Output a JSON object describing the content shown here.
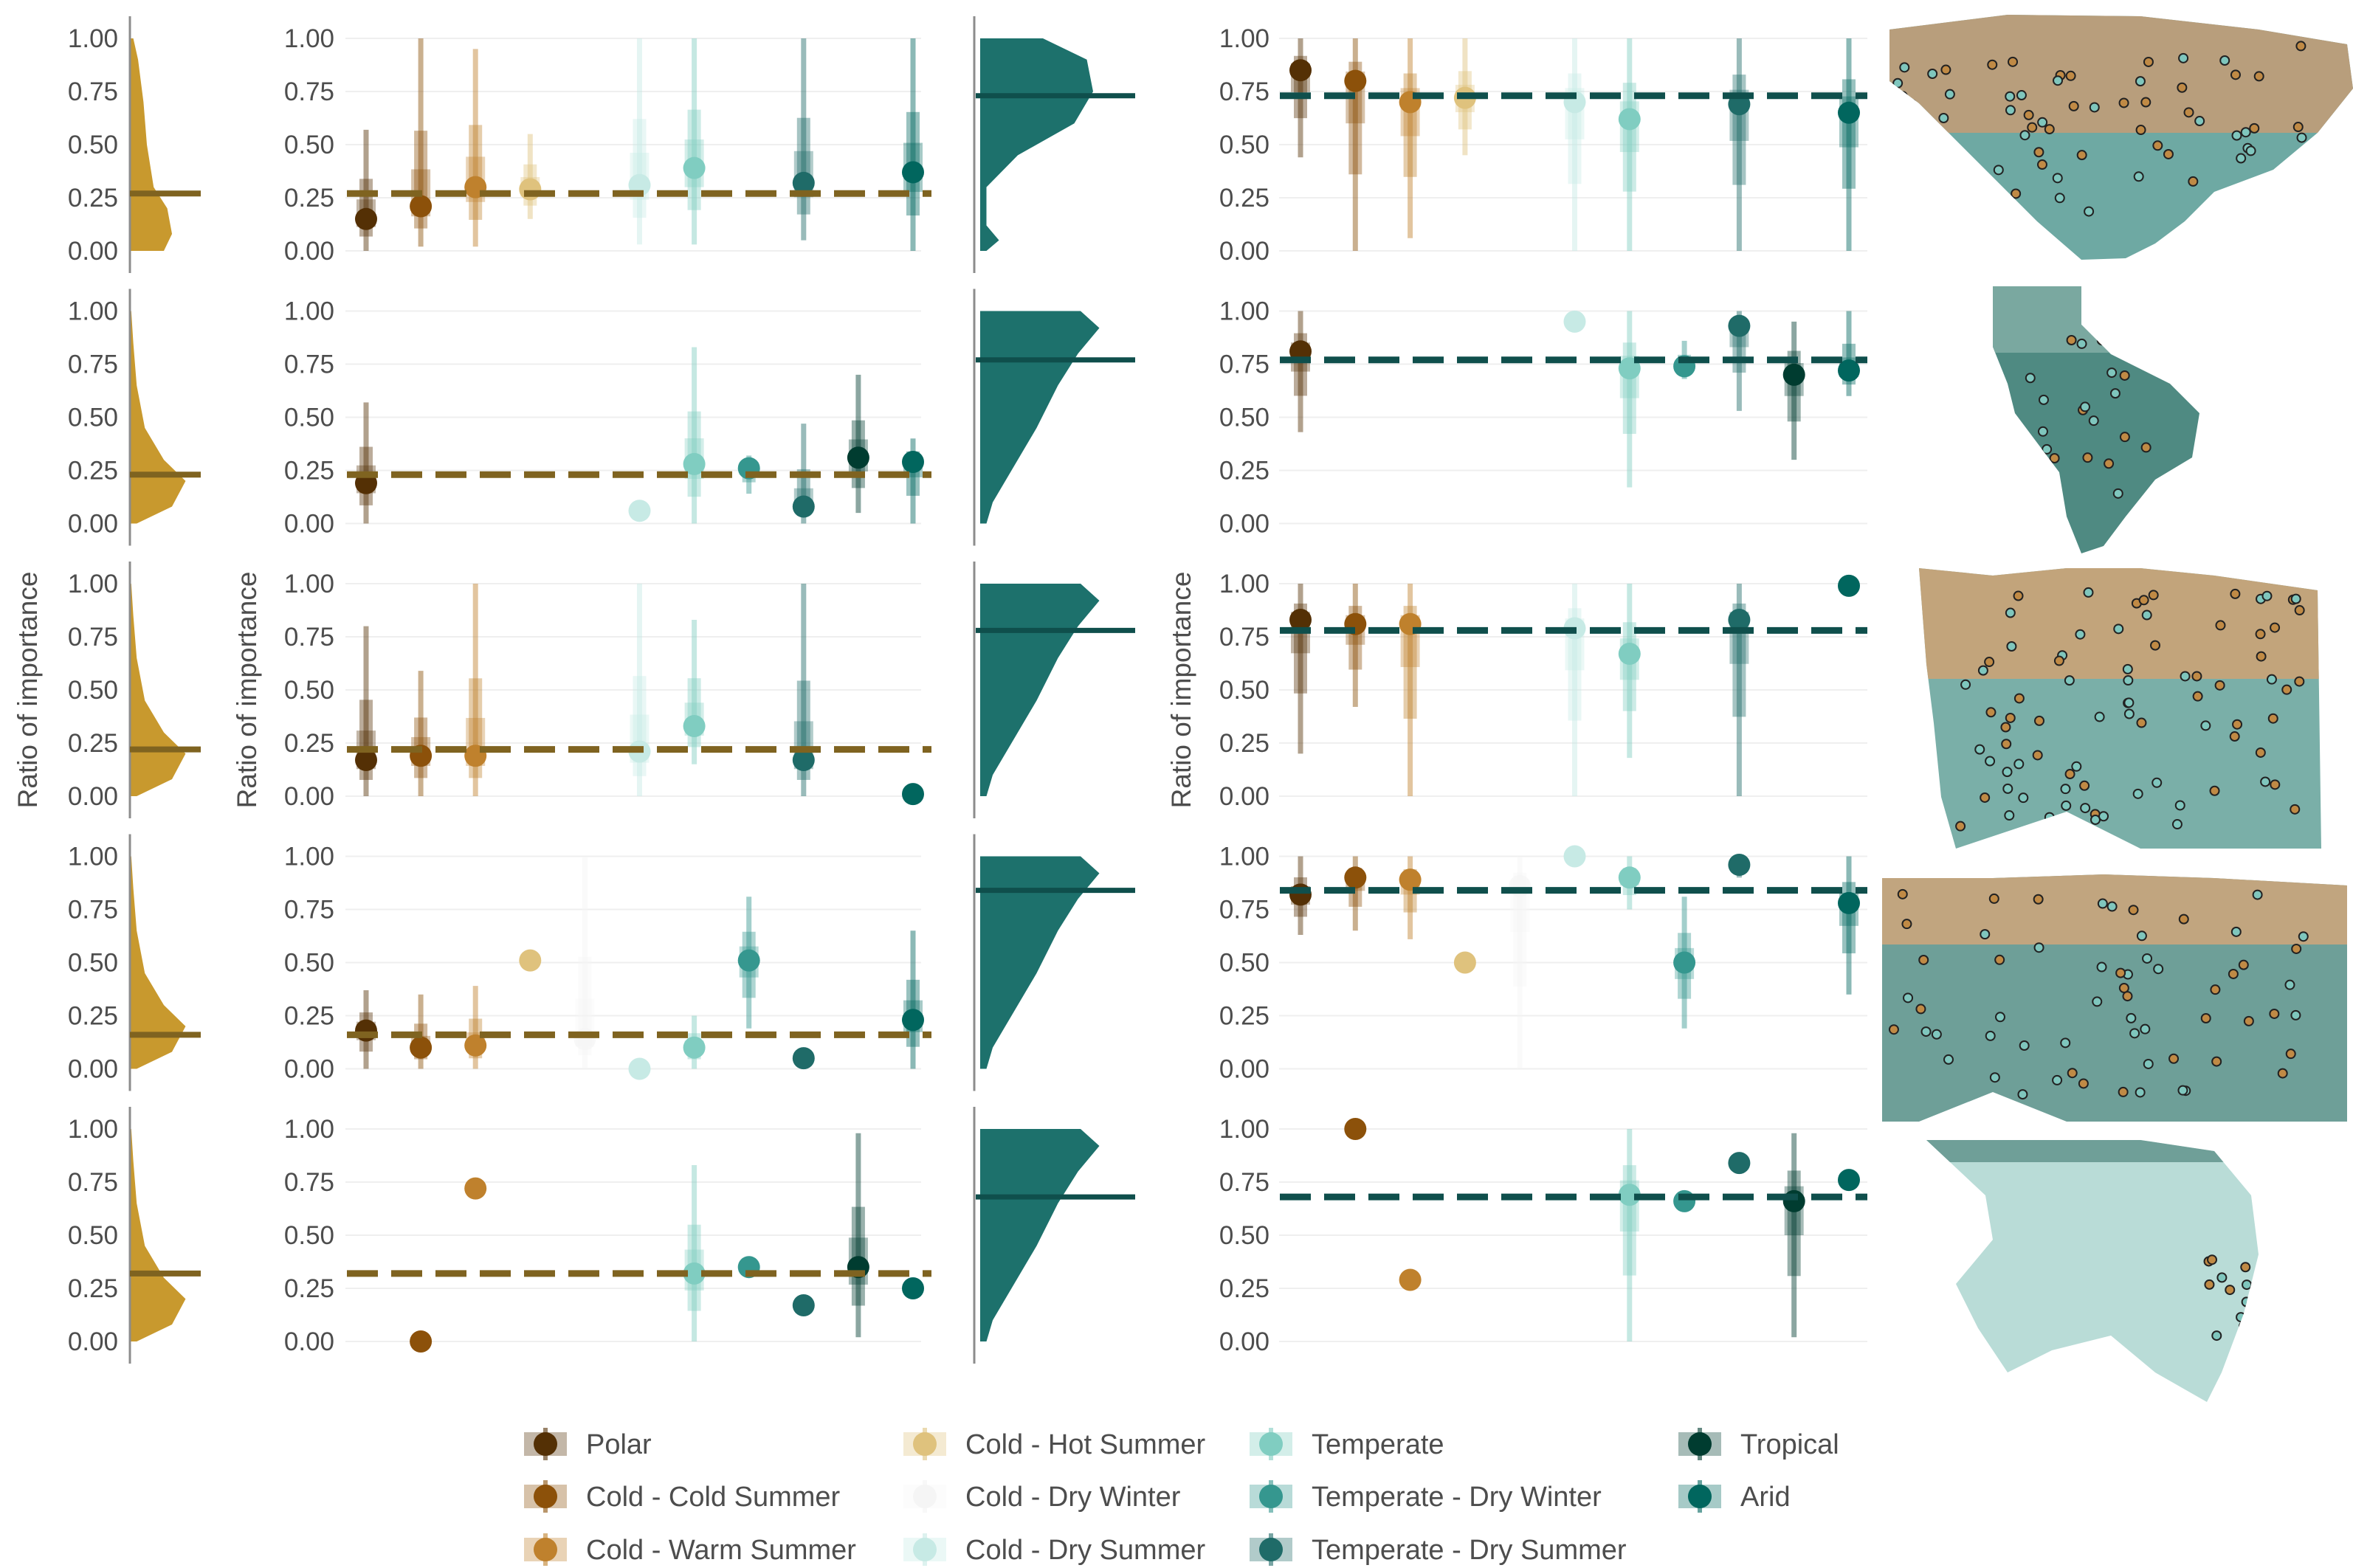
{
  "y_axis_label": "Ratio of importance",
  "legend": {
    "items": [
      {
        "label": "Polar",
        "color": "#543005"
      },
      {
        "label": "Cold - Cold Summer",
        "color": "#8c510a"
      },
      {
        "label": "Cold - Warm Summer",
        "color": "#bf812d"
      },
      {
        "label": "Cold - Hot Summer",
        "color": "#dfc27d"
      },
      {
        "label": "Cold - Dry Winter",
        "color": "#f5f5f5"
      },
      {
        "label": "Cold - Dry Summer",
        "color": "#c7eae5"
      },
      {
        "label": "Temperate",
        "color": "#80cdc1"
      },
      {
        "label": "Temperate - Dry Winter",
        "color": "#35978f"
      },
      {
        "label": "Temperate - Dry Summer",
        "color": "#1f6b68"
      },
      {
        "label": "Tropical",
        "color": "#003c30"
      },
      {
        "label": "Arid",
        "color": "#01665e"
      }
    ]
  },
  "colors": {
    "gold_density": "#c8992e",
    "gold_line": "#7f6320",
    "teal_density": "#1d716c",
    "teal_line": "#0f4f4c"
  },
  "maps": [
    {
      "region": "north-america"
    },
    {
      "region": "south-america"
    },
    {
      "region": "europe"
    },
    {
      "region": "asia"
    },
    {
      "region": "oceania"
    }
  ],
  "chart_data": {
    "type": "scatter",
    "y_ticks": [
      "1.00",
      "0.75",
      "0.50",
      "0.25",
      "0.00"
    ],
    "ylim": [
      0,
      1
    ],
    "categories": [
      "Polar",
      "Cold - Cold Summer",
      "Cold - Warm Summer",
      "Cold - Hot Summer",
      "Cold - Dry Winter",
      "Cold - Dry Summer",
      "Temperate",
      "Temperate - Dry Winter",
      "Temperate - Dry Summer",
      "Tropical",
      "Arid"
    ],
    "rows": [
      {
        "left_mean": 0.27,
        "right_mean": 0.73,
        "left_points": [
          {
            "c": 0,
            "y": 0.15,
            "lo": 0.0,
            "hi": 0.57
          },
          {
            "c": 1,
            "y": 0.21,
            "lo": 0.02,
            "hi": 1.0
          },
          {
            "c": 2,
            "y": 0.3,
            "lo": 0.02,
            "hi": 0.95
          },
          {
            "c": 3,
            "y": 0.29,
            "lo": 0.15,
            "hi": 0.55
          },
          {
            "c": 5,
            "y": 0.31,
            "lo": 0.03,
            "hi": 1.0
          },
          {
            "c": 6,
            "y": 0.39,
            "lo": 0.03,
            "hi": 1.0
          },
          {
            "c": 8,
            "y": 0.32,
            "lo": 0.05,
            "hi": 1.0
          },
          {
            "c": 10,
            "y": 0.37,
            "lo": 0.0,
            "hi": 1.0
          }
        ],
        "right_points": [
          {
            "c": 0,
            "y": 0.85,
            "lo": 0.44,
            "hi": 1.0
          },
          {
            "c": 1,
            "y": 0.8,
            "lo": 0.0,
            "hi": 1.0
          },
          {
            "c": 2,
            "y": 0.7,
            "lo": 0.06,
            "hi": 1.0
          },
          {
            "c": 3,
            "y": 0.72,
            "lo": 0.45,
            "hi": 1.0
          },
          {
            "c": 5,
            "y": 0.7,
            "lo": 0.0,
            "hi": 1.0
          },
          {
            "c": 6,
            "y": 0.62,
            "lo": 0.0,
            "hi": 1.0
          },
          {
            "c": 8,
            "y": 0.69,
            "lo": 0.0,
            "hi": 1.0
          },
          {
            "c": 10,
            "y": 0.65,
            "lo": 0.0,
            "hi": 1.0
          }
        ]
      },
      {
        "left_mean": 0.23,
        "right_mean": 0.77,
        "left_points": [
          {
            "c": 0,
            "y": 0.19,
            "lo": 0.0,
            "hi": 0.57
          },
          {
            "c": 5,
            "y": 0.06,
            "lo": 0.06,
            "hi": 0.06
          },
          {
            "c": 6,
            "y": 0.28,
            "lo": 0.0,
            "hi": 0.83
          },
          {
            "c": 7,
            "y": 0.26,
            "lo": 0.14,
            "hi": 0.32
          },
          {
            "c": 8,
            "y": 0.08,
            "lo": 0.0,
            "hi": 0.47
          },
          {
            "c": 9,
            "y": 0.31,
            "lo": 0.05,
            "hi": 0.7
          },
          {
            "c": 10,
            "y": 0.29,
            "lo": 0.0,
            "hi": 0.4
          }
        ],
        "right_points": [
          {
            "c": 0,
            "y": 0.81,
            "lo": 0.43,
            "hi": 1.0
          },
          {
            "c": 5,
            "y": 0.95,
            "lo": 0.95,
            "hi": 0.95
          },
          {
            "c": 6,
            "y": 0.73,
            "lo": 0.17,
            "hi": 1.0
          },
          {
            "c": 7,
            "y": 0.74,
            "lo": 0.68,
            "hi": 0.86
          },
          {
            "c": 8,
            "y": 0.93,
            "lo": 0.53,
            "hi": 1.0
          },
          {
            "c": 9,
            "y": 0.7,
            "lo": 0.3,
            "hi": 0.95
          },
          {
            "c": 10,
            "y": 0.72,
            "lo": 0.6,
            "hi": 1.0
          }
        ]
      },
      {
        "left_mean": 0.22,
        "right_mean": 0.78,
        "left_points": [
          {
            "c": 0,
            "y": 0.17,
            "lo": 0.0,
            "hi": 0.8
          },
          {
            "c": 1,
            "y": 0.19,
            "lo": 0.0,
            "hi": 0.59
          },
          {
            "c": 2,
            "y": 0.19,
            "lo": 0.0,
            "hi": 1.0
          },
          {
            "c": 5,
            "y": 0.21,
            "lo": 0.0,
            "hi": 1.0
          },
          {
            "c": 6,
            "y": 0.33,
            "lo": 0.15,
            "hi": 0.83
          },
          {
            "c": 8,
            "y": 0.17,
            "lo": 0.0,
            "hi": 1.0
          },
          {
            "c": 10,
            "y": 0.01,
            "lo": 0.01,
            "hi": 0.01
          }
        ],
        "right_points": [
          {
            "c": 0,
            "y": 0.83,
            "lo": 0.2,
            "hi": 1.0
          },
          {
            "c": 1,
            "y": 0.81,
            "lo": 0.42,
            "hi": 1.0
          },
          {
            "c": 2,
            "y": 0.81,
            "lo": 0.0,
            "hi": 1.0
          },
          {
            "c": 5,
            "y": 0.79,
            "lo": 0.0,
            "hi": 1.0
          },
          {
            "c": 6,
            "y": 0.67,
            "lo": 0.18,
            "hi": 1.0
          },
          {
            "c": 8,
            "y": 0.83,
            "lo": 0.0,
            "hi": 1.0
          },
          {
            "c": 10,
            "y": 0.99,
            "lo": 0.99,
            "hi": 0.99
          }
        ]
      },
      {
        "left_mean": 0.16,
        "right_mean": 0.84,
        "left_points": [
          {
            "c": 0,
            "y": 0.18,
            "lo": 0.0,
            "hi": 0.37
          },
          {
            "c": 1,
            "y": 0.1,
            "lo": 0.0,
            "hi": 0.35
          },
          {
            "c": 2,
            "y": 0.11,
            "lo": 0.0,
            "hi": 0.39
          },
          {
            "c": 3,
            "y": 0.51,
            "lo": 0.51,
            "hi": 0.51
          },
          {
            "c": 4,
            "y": 0.14,
            "lo": 0.0,
            "hi": 1.0
          },
          {
            "c": 5,
            "y": 0.0,
            "lo": 0.0,
            "hi": 0.0
          },
          {
            "c": 6,
            "y": 0.1,
            "lo": 0.0,
            "hi": 0.25
          },
          {
            "c": 7,
            "y": 0.51,
            "lo": 0.19,
            "hi": 0.81
          },
          {
            "c": 8,
            "y": 0.05,
            "lo": 0.0,
            "hi": 0.1
          },
          {
            "c": 10,
            "y": 0.23,
            "lo": 0.0,
            "hi": 0.65
          }
        ],
        "right_points": [
          {
            "c": 0,
            "y": 0.82,
            "lo": 0.63,
            "hi": 1.0
          },
          {
            "c": 1,
            "y": 0.9,
            "lo": 0.65,
            "hi": 1.0
          },
          {
            "c": 2,
            "y": 0.89,
            "lo": 0.61,
            "hi": 1.0
          },
          {
            "c": 3,
            "y": 0.5,
            "lo": 0.5,
            "hi": 0.5
          },
          {
            "c": 4,
            "y": 0.86,
            "lo": 0.0,
            "hi": 1.0
          },
          {
            "c": 5,
            "y": 1.0,
            "lo": 1.0,
            "hi": 1.0
          },
          {
            "c": 6,
            "y": 0.9,
            "lo": 0.75,
            "hi": 1.0
          },
          {
            "c": 7,
            "y": 0.5,
            "lo": 0.19,
            "hi": 0.81
          },
          {
            "c": 8,
            "y": 0.96,
            "lo": 0.9,
            "hi": 1.0
          },
          {
            "c": 10,
            "y": 0.78,
            "lo": 0.35,
            "hi": 1.0
          }
        ]
      },
      {
        "left_mean": 0.32,
        "right_mean": 0.68,
        "left_points": [
          {
            "c": 1,
            "y": 0.0,
            "lo": 0.0,
            "hi": 0.0
          },
          {
            "c": 2,
            "y": 0.72,
            "lo": 0.72,
            "hi": 0.72
          },
          {
            "c": 6,
            "y": 0.32,
            "lo": 0.0,
            "hi": 0.83
          },
          {
            "c": 7,
            "y": 0.35,
            "lo": 0.35,
            "hi": 0.35
          },
          {
            "c": 8,
            "y": 0.17,
            "lo": 0.17,
            "hi": 0.17
          },
          {
            "c": 9,
            "y": 0.35,
            "lo": 0.02,
            "hi": 0.98
          },
          {
            "c": 10,
            "y": 0.25,
            "lo": 0.25,
            "hi": 0.25
          }
        ],
        "right_points": [
          {
            "c": 1,
            "y": 1.0,
            "lo": 1.0,
            "hi": 1.0
          },
          {
            "c": 2,
            "y": 0.29,
            "lo": 0.29,
            "hi": 0.29
          },
          {
            "c": 6,
            "y": 0.69,
            "lo": 0.0,
            "hi": 1.0
          },
          {
            "c": 7,
            "y": 0.66,
            "lo": 0.66,
            "hi": 0.66
          },
          {
            "c": 8,
            "y": 0.84,
            "lo": 0.84,
            "hi": 0.84
          },
          {
            "c": 9,
            "y": 0.66,
            "lo": 0.02,
            "hi": 0.98
          },
          {
            "c": 10,
            "y": 0.76,
            "lo": 0.76,
            "hi": 0.76
          }
        ]
      }
    ]
  }
}
